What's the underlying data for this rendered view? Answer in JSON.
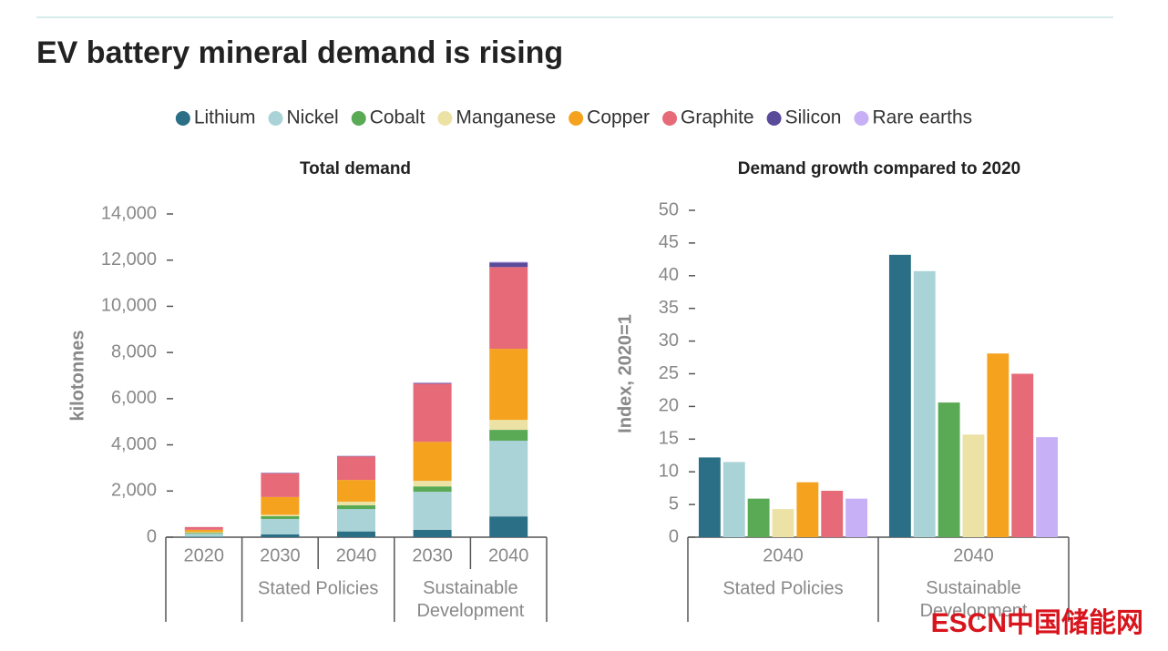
{
  "title": "EV battery mineral demand is rising",
  "watermark": "ESCN中国储能网",
  "chart_data": [
    {
      "type": "bar",
      "stacked": true,
      "title": "Total demand",
      "ylabel": "kilotonnes",
      "groups": [
        {
          "categories": [
            "2020"
          ]
        },
        {
          "name": "Stated Policies",
          "categories": [
            "2030",
            "2040"
          ]
        },
        {
          "name": "Sustainable Development",
          "categories": [
            "2030",
            "2040"
          ]
        }
      ],
      "ylim": [
        0,
        14000
      ],
      "yticks": [
        0,
        {
          "value": 2000,
          "label": "2,000"
        },
        {
          "value": 4000,
          "label": "4,000"
        },
        {
          "value": 6000,
          "label": "6,000"
        },
        {
          "value": 8000,
          "label": "8,000"
        },
        {
          "value": 10000,
          "label": "10,000"
        },
        {
          "value": 12000,
          "label": "12,000"
        },
        {
          "value": 14000,
          "label": "14,000"
        }
      ],
      "series": [
        {
          "name": "Lithium",
          "color": "#2b6f87",
          "values": [
            20,
            120,
            250,
            320,
            900
          ]
        },
        {
          "name": "Nickel",
          "color": "#a9d3d6",
          "values": [
            130,
            670,
            970,
            1650,
            3280
          ]
        },
        {
          "name": "Cobalt",
          "color": "#5aaa55",
          "values": [
            40,
            120,
            160,
            230,
            470
          ]
        },
        {
          "name": "Manganese",
          "color": "#ece2a5",
          "values": [
            30,
            60,
            160,
            240,
            430
          ]
        },
        {
          "name": "Copper",
          "color": "#f5a21f",
          "values": [
            100,
            770,
            940,
            1690,
            3080
          ]
        },
        {
          "name": "Graphite",
          "color": "#e66a78",
          "values": [
            120,
            1030,
            1020,
            2520,
            3540
          ]
        },
        {
          "name": "Silicon",
          "color": "#5a4a9a",
          "values": [
            0,
            20,
            20,
            30,
            200
          ]
        },
        {
          "name": "Rare earths",
          "color": "#c7b0f5",
          "values": [
            5,
            10,
            10,
            20,
            30
          ]
        }
      ]
    },
    {
      "type": "bar",
      "stacked": false,
      "title": "Demand growth compared to 2020",
      "ylabel": "Index, 2020=1",
      "groups": [
        {
          "name": "Stated Policies",
          "categories": [
            "2040"
          ]
        },
        {
          "name": "Sustainable Development",
          "categories": [
            "2040"
          ]
        }
      ],
      "ylim": [
        0,
        50
      ],
      "yticks": [
        0,
        5,
        10,
        15,
        20,
        25,
        30,
        35,
        40,
        45,
        50
      ],
      "series": [
        {
          "name": "Lithium",
          "color": "#2b6f87",
          "values": [
            12.2,
            43.2
          ]
        },
        {
          "name": "Nickel",
          "color": "#a9d3d6",
          "values": [
            11.5,
            40.7
          ]
        },
        {
          "name": "Cobalt",
          "color": "#5aaa55",
          "values": [
            5.9,
            20.6
          ]
        },
        {
          "name": "Manganese",
          "color": "#ece2a5",
          "values": [
            4.3,
            15.7
          ]
        },
        {
          "name": "Copper",
          "color": "#f5a21f",
          "values": [
            8.4,
            28.1
          ]
        },
        {
          "name": "Graphite",
          "color": "#e66a78",
          "values": [
            7.1,
            25.0
          ]
        },
        {
          "name": "Silicon",
          "color": "#5a4a9a",
          "values": [
            null,
            null
          ]
        },
        {
          "name": "Rare earths",
          "color": "#c7b0f5",
          "values": [
            5.9,
            15.3
          ]
        }
      ]
    }
  ]
}
